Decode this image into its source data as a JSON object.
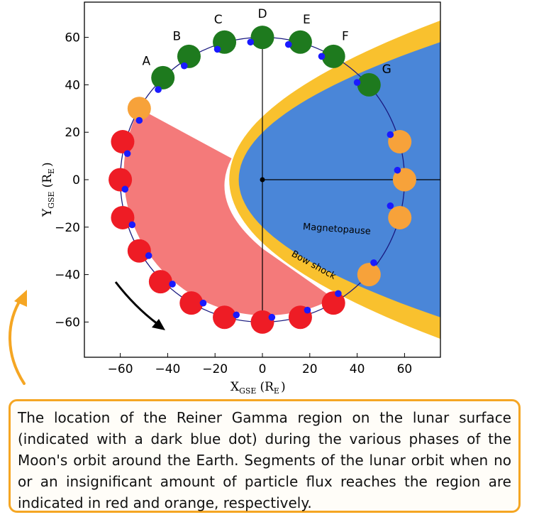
{
  "colors": {
    "bow_shock": "#f9c12e",
    "magnetosphere": "#4a86d8",
    "shadow": "#f47a7a",
    "orbit": "#1a1a80",
    "no_flux": "#ee1c25",
    "low_flux": "#f7a23a",
    "full_flux": "#1e7a1e",
    "reiner_gamma": "#1a1aff",
    "caption_border": "#f5a623"
  },
  "axes": {
    "x_ticks": [
      "−60",
      "−40",
      "−20",
      "0",
      "20",
      "40",
      "60"
    ],
    "y_ticks": [
      "60",
      "40",
      "20",
      "0",
      "−20",
      "−40",
      "−60"
    ],
    "x_label_main": "X",
    "x_label_sub": "GSE",
    "x_label_unit": "(R",
    "x_label_unit_sub": "E",
    "x_label_close": ")",
    "y_label_main": "Y",
    "y_label_sub": "GSE",
    "y_label_unit": "(R",
    "y_label_unit_sub": "E",
    "y_label_close": ")"
  },
  "chart_data": {
    "type": "diagram",
    "xlim": [
      -75,
      75
    ],
    "ylim": [
      -75,
      75
    ],
    "orbit_radius": 60,
    "phase_labels": [
      "A",
      "B",
      "C",
      "D",
      "E",
      "F",
      "G"
    ],
    "region_labels": {
      "magnetopause": "Magnetopause",
      "bow_shock": "Bow shock"
    },
    "moon_positions": [
      {
        "label": "A",
        "x": -42,
        "y": 43,
        "flux": "full"
      },
      {
        "label": "B",
        "x": -31,
        "y": 52,
        "flux": "full"
      },
      {
        "label": "C",
        "x": -16,
        "y": 58,
        "flux": "full"
      },
      {
        "label": "D",
        "x": 0,
        "y": 60,
        "flux": "full"
      },
      {
        "label": "E",
        "x": 16,
        "y": 58,
        "flux": "full"
      },
      {
        "label": "F",
        "x": 30,
        "y": 52,
        "flux": "full"
      },
      {
        "label": "G",
        "x": 45,
        "y": 40,
        "flux": "full"
      },
      {
        "x": -52,
        "y": 30,
        "flux": "low"
      },
      {
        "x": 58,
        "y": 16,
        "flux": "low"
      },
      {
        "x": 60,
        "y": 0,
        "flux": "low"
      },
      {
        "x": 58,
        "y": -16,
        "flux": "low"
      },
      {
        "x": 45,
        "y": -40,
        "flux": "low"
      },
      {
        "x": -59,
        "y": 16,
        "flux": "none"
      },
      {
        "x": -60,
        "y": 0,
        "flux": "none"
      },
      {
        "x": -59,
        "y": -16,
        "flux": "none"
      },
      {
        "x": -52,
        "y": -30,
        "flux": "none"
      },
      {
        "x": -43,
        "y": -43,
        "flux": "none"
      },
      {
        "x": -30,
        "y": -52,
        "flux": "none"
      },
      {
        "x": -16,
        "y": -58,
        "flux": "none"
      },
      {
        "x": 0,
        "y": -60,
        "flux": "none"
      },
      {
        "x": 16,
        "y": -58,
        "flux": "none"
      },
      {
        "x": 30,
        "y": -52,
        "flux": "none"
      }
    ],
    "reiner_gamma_dots": [
      [
        -44,
        38
      ],
      [
        -33,
        48
      ],
      [
        -19,
        55
      ],
      [
        -5,
        58
      ],
      [
        11,
        57
      ],
      [
        25,
        52
      ],
      [
        40,
        41
      ],
      [
        -52,
        25
      ],
      [
        -57,
        11
      ],
      [
        -58,
        -4
      ],
      [
        -55,
        -19
      ],
      [
        -48,
        -32
      ],
      [
        -38,
        -44
      ],
      [
        -25,
        -52
      ],
      [
        -11,
        -57
      ],
      [
        4,
        -58
      ],
      [
        19,
        -55
      ],
      [
        32,
        -48
      ],
      [
        47,
        -35
      ],
      [
        54,
        -11
      ],
      [
        57,
        4
      ],
      [
        54,
        19
      ]
    ]
  },
  "caption": {
    "text": "The location of the Reiner Gamma region on the lunar surface (indicated with a dark blue dot) during the various phases of the Moon's orbit around the Earth. Segments of the lunar orbit when no or an insignificant amount of particle flux reaches the region are indicated in red and orange, respectively."
  }
}
